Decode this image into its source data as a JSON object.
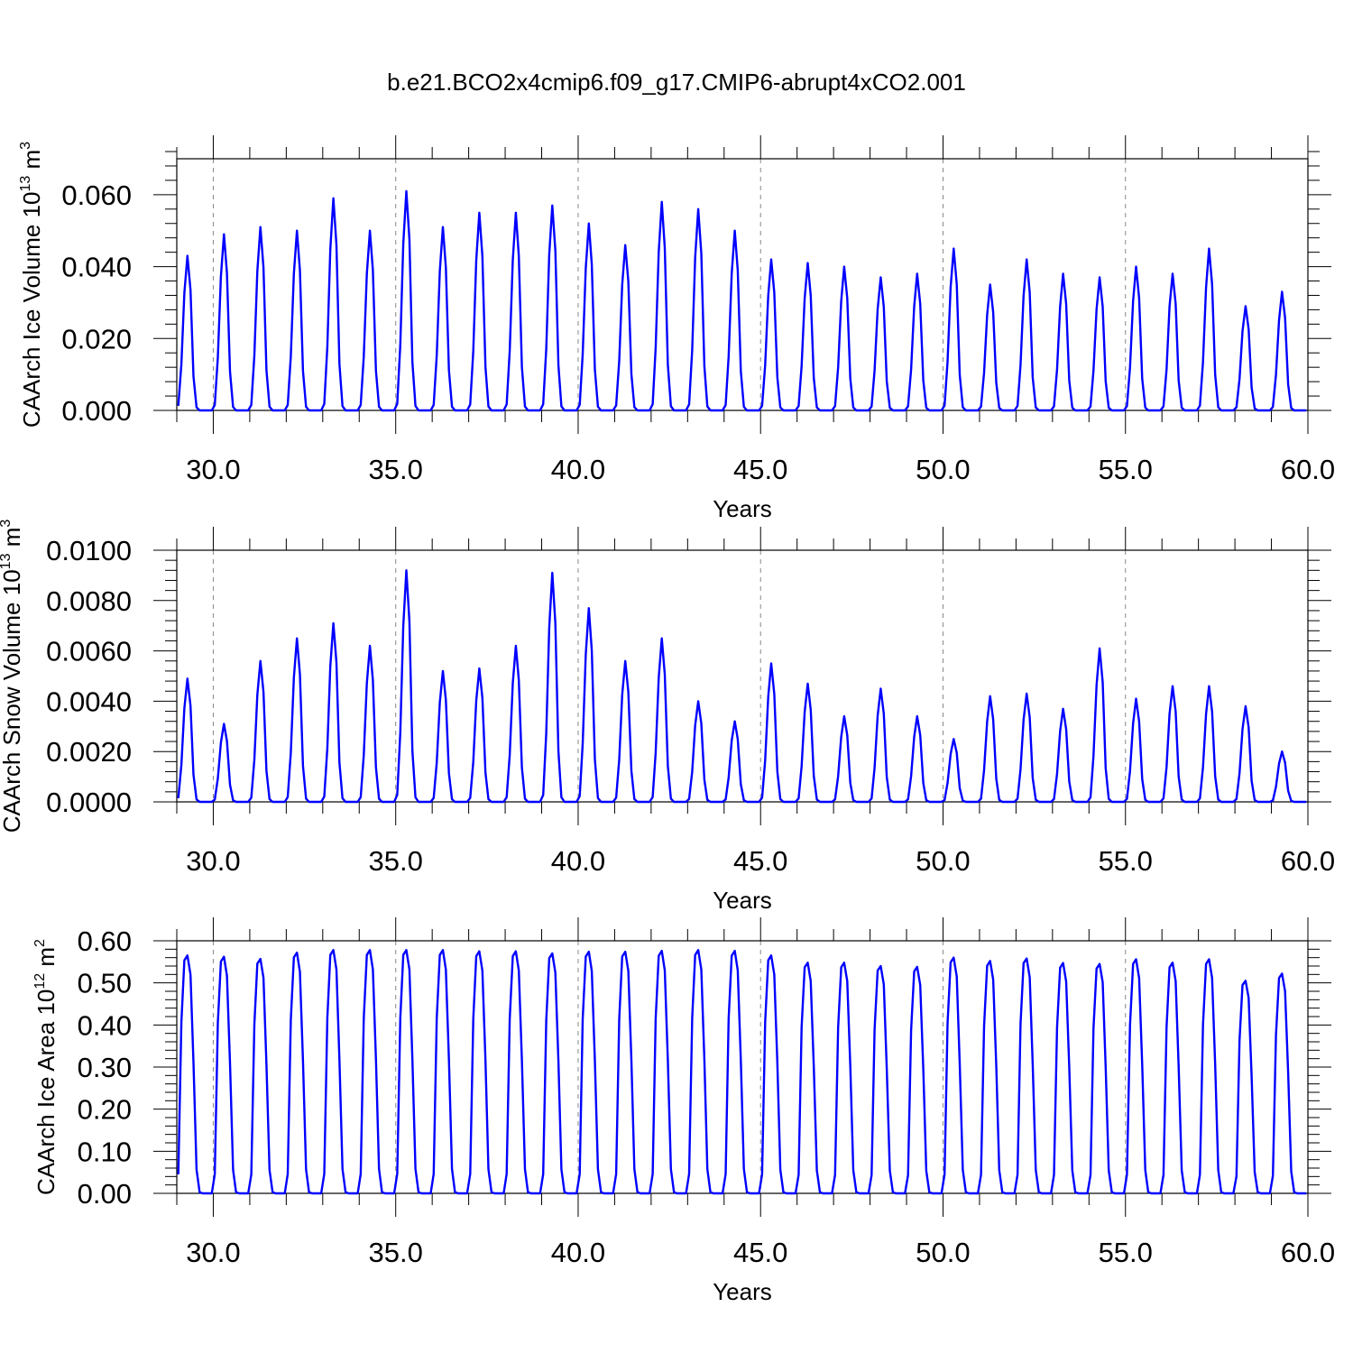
{
  "title": "b.e21.BCO2x4cmip6.f09_g17.CMIP6-abrupt4xCO2.001",
  "colors": {
    "line": "#0000ff",
    "axis": "#000000",
    "grid": "#888888"
  },
  "chart_data": [
    {
      "type": "line",
      "title": "",
      "ylabel": {
        "base": "CAArch Ice Volume 10",
        "exp": "13",
        "unit": " m",
        "unit_exp": "3"
      },
      "xlabel": "Years",
      "xlim": [
        29.0,
        60.0
      ],
      "ylim": [
        0.0,
        0.07
      ],
      "xticks": [
        "30.0",
        "35.0",
        "40.0",
        "45.0",
        "50.0",
        "55.0",
        "60.0"
      ],
      "yticks": [
        "0.000",
        "0.020",
        "0.040",
        "0.060"
      ],
      "ytick_values": [
        0.0,
        0.02,
        0.04,
        0.06
      ],
      "series": [
        {
          "name": "CAArch Ice Volume",
          "peaks": [
            0.043,
            0.049,
            0.051,
            0.05,
            0.059,
            0.05,
            0.061,
            0.051,
            0.055,
            0.055,
            0.057,
            0.052,
            0.046,
            0.058,
            0.056,
            0.05,
            0.042,
            0.041,
            0.04,
            0.037,
            0.038,
            0.045,
            0.035,
            0.042,
            0.038,
            0.037,
            0.04,
            0.038,
            0.045,
            0.029,
            0.033
          ]
        }
      ]
    },
    {
      "type": "line",
      "title": "",
      "ylabel": {
        "base": "CAArch Snow Volume 10",
        "exp": "13",
        "unit": " m",
        "unit_exp": "3"
      },
      "xlabel": "Years",
      "xlim": [
        29.0,
        60.0
      ],
      "ylim": [
        0.0,
        0.01
      ],
      "xticks": [
        "30.0",
        "35.0",
        "40.0",
        "45.0",
        "50.0",
        "55.0",
        "60.0"
      ],
      "yticks": [
        "0.0000",
        "0.0020",
        "0.0040",
        "0.0060",
        "0.0080",
        "0.0100"
      ],
      "ytick_values": [
        0.0,
        0.002,
        0.004,
        0.006,
        0.008,
        0.01
      ],
      "series": [
        {
          "name": "CAArch Snow Volume",
          "peaks": [
            0.0049,
            0.0031,
            0.0056,
            0.0065,
            0.0071,
            0.0062,
            0.0092,
            0.0052,
            0.0053,
            0.0062,
            0.0091,
            0.0077,
            0.0056,
            0.0065,
            0.004,
            0.0032,
            0.0055,
            0.0047,
            0.0034,
            0.0045,
            0.0034,
            0.0025,
            0.0042,
            0.0043,
            0.0037,
            0.0061,
            0.0041,
            0.0046,
            0.0046,
            0.0038,
            0.002
          ]
        }
      ]
    },
    {
      "type": "line",
      "title": "",
      "ylabel": {
        "base": "CAArch Ice Area 10",
        "exp": "12",
        "unit": " m",
        "unit_exp": "2"
      },
      "xlabel": "Years",
      "xlim": [
        29.0,
        60.0
      ],
      "ylim": [
        0.0,
        0.6
      ],
      "xticks": [
        "30.0",
        "35.0",
        "40.0",
        "45.0",
        "50.0",
        "55.0",
        "60.0"
      ],
      "yticks": [
        "0.00",
        "0.10",
        "0.20",
        "0.30",
        "0.40",
        "0.50",
        "0.60"
      ],
      "ytick_values": [
        0.0,
        0.1,
        0.2,
        0.3,
        0.4,
        0.5,
        0.6
      ],
      "series": [
        {
          "name": "CAArch Ice Area",
          "peaks": [
            0.565,
            0.562,
            0.557,
            0.572,
            0.578,
            0.578,
            0.578,
            0.578,
            0.575,
            0.575,
            0.57,
            0.574,
            0.574,
            0.576,
            0.578,
            0.576,
            0.565,
            0.548,
            0.548,
            0.54,
            0.538,
            0.56,
            0.552,
            0.558,
            0.547,
            0.545,
            0.556,
            0.548,
            0.556,
            0.505,
            0.522
          ]
        }
      ]
    }
  ]
}
